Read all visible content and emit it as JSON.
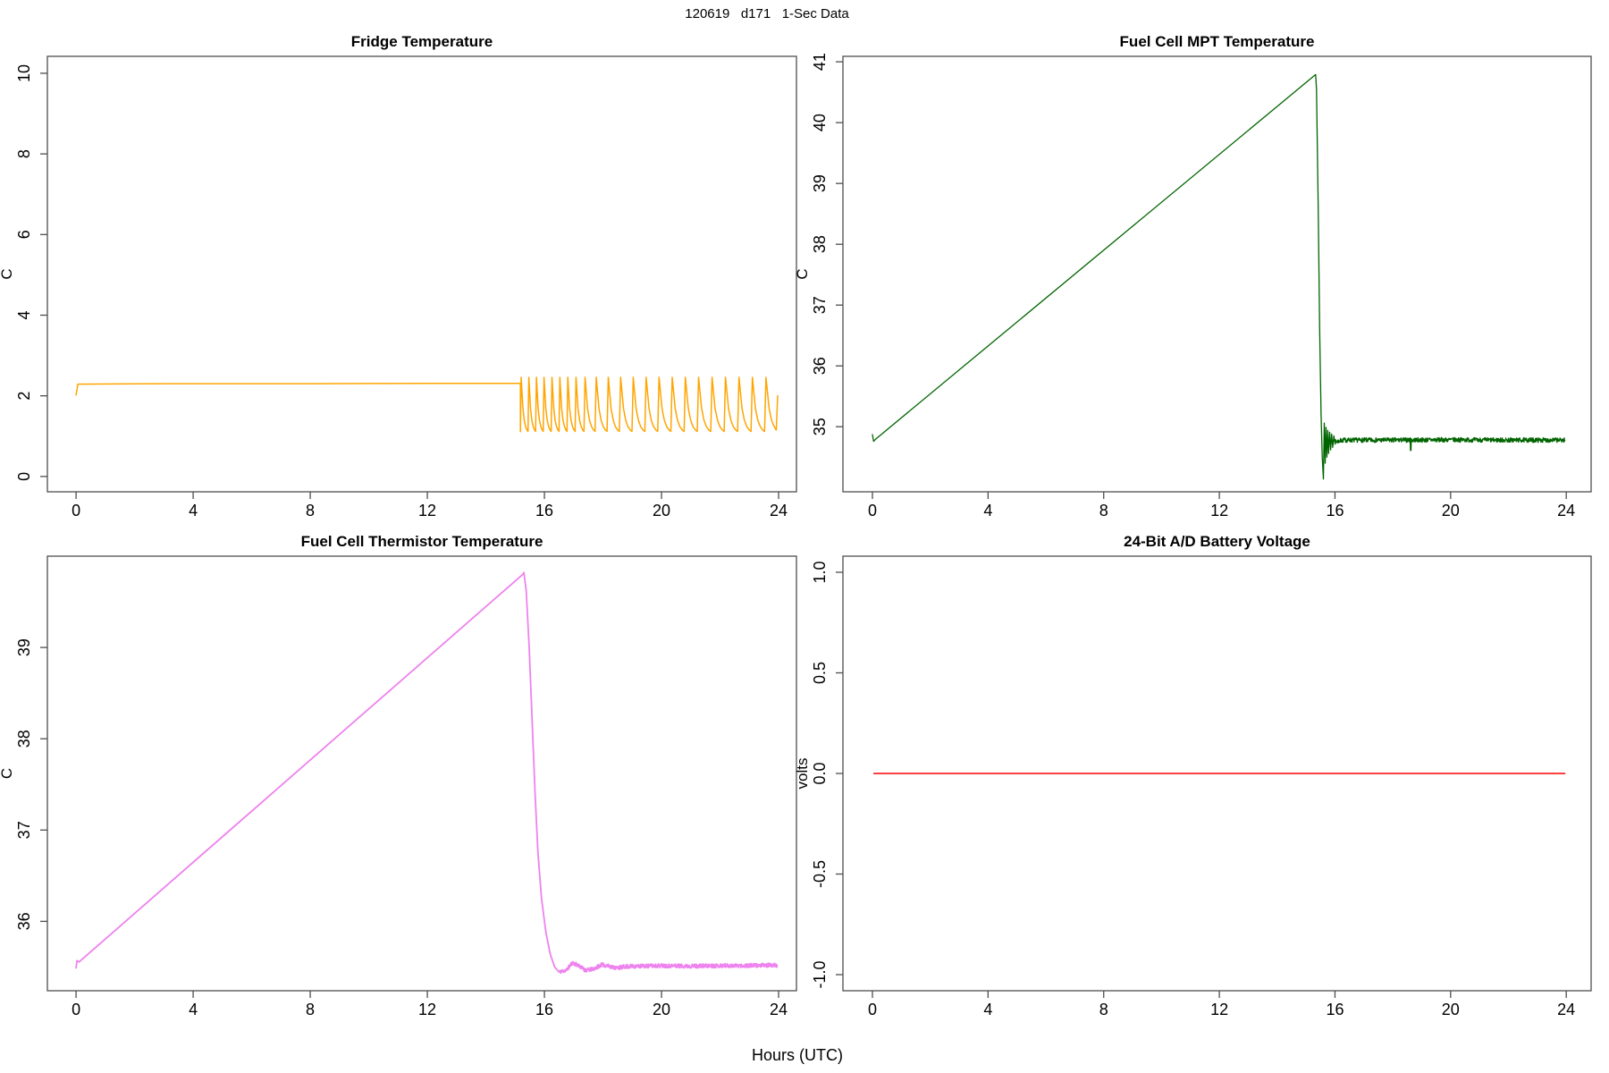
{
  "figure": {
    "main_title": "120619   d171   1-Sec Data",
    "shared_x_label": "Hours (UTC)",
    "axis_color": "#4d4d4d",
    "text_color": "#000000",
    "background": "#ffffff"
  },
  "chart_data": [
    {
      "type": "line",
      "title": "Fridge Temperature",
      "ylabel": "C",
      "line_color": "#FFA500",
      "line_width": 1.5,
      "xlim": [
        -0.98,
        24.61
      ],
      "ylim": [
        -0.38,
        10.42
      ],
      "x_ticks": [
        0,
        4,
        8,
        12,
        16,
        20,
        24
      ],
      "x_tick_labels": [
        "0",
        "4",
        "8",
        "12",
        "16",
        "20",
        "24"
      ],
      "y_ticks": [
        0,
        2,
        4,
        6,
        8,
        10
      ],
      "y_tick_labels": [
        "0",
        "2",
        "4",
        "6",
        "8",
        "10"
      ],
      "segments": [
        {
          "type": "points",
          "pts": [
            [
              0.0,
              2.02
            ],
            [
              0.06,
              2.29
            ],
            [
              3.0,
              2.3
            ],
            [
              8.0,
              2.3
            ],
            [
              12.0,
              2.31
            ],
            [
              15.18,
              2.31
            ]
          ]
        },
        {
          "type": "sawtooth",
          "from": 15.18,
          "to": 23.92,
          "trough": 1.06,
          "peak": 2.46,
          "rise_frac": 0.1,
          "decay_k": 3.2,
          "periods": [
            0.26,
            0.26,
            0.26,
            0.27,
            0.27,
            0.27,
            0.28,
            0.3,
            0.38,
            0.41,
            0.42,
            0.43,
            0.44,
            0.44,
            0.45,
            0.45,
            0.45,
            0.46,
            0.46,
            0.46,
            0.46,
            0.46,
            0.48
          ]
        },
        {
          "type": "points",
          "pts": [
            [
              23.92,
              1.15
            ],
            [
              23.97,
              2.0
            ]
          ]
        }
      ]
    },
    {
      "type": "line",
      "title": "Fuel Cell MPT Temperature",
      "ylabel": "C",
      "line_color": "#006400",
      "line_width": 1.3,
      "xlim": [
        -1.02,
        24.86
      ],
      "ylim": [
        33.93,
        41.09
      ],
      "x_ticks": [
        0,
        4,
        8,
        12,
        16,
        20,
        24
      ],
      "x_tick_labels": [
        "0",
        "4",
        "8",
        "12",
        "16",
        "20",
        "24"
      ],
      "y_ticks": [
        35,
        36,
        37,
        38,
        39,
        40,
        41
      ],
      "y_tick_labels": [
        "35",
        "36",
        "37",
        "38",
        "39",
        "40",
        "41"
      ],
      "segments": [
        {
          "type": "points",
          "pts": [
            [
              0.0,
              34.87
            ],
            [
              0.04,
              34.76
            ],
            [
              0.12,
              34.8
            ],
            [
              15.33,
              40.79
            ]
          ]
        },
        {
          "type": "points",
          "pts": [
            [
              15.33,
              40.79
            ],
            [
              15.36,
              40.55
            ],
            [
              15.42,
              38.6
            ],
            [
              15.47,
              36.6
            ],
            [
              15.52,
              35.2
            ],
            [
              15.56,
              34.5
            ],
            [
              15.6,
              34.14
            ]
          ]
        },
        {
          "type": "points",
          "pts": [
            [
              15.6,
              34.14
            ],
            [
              15.63,
              35.06
            ],
            [
              15.66,
              34.4
            ],
            [
              15.69,
              34.99
            ],
            [
              15.72,
              34.5
            ],
            [
              15.75,
              34.94
            ],
            [
              15.78,
              34.56
            ],
            [
              15.815,
              34.91
            ],
            [
              15.85,
              34.62
            ],
            [
              15.885,
              34.88
            ],
            [
              15.92,
              34.66
            ],
            [
              15.96,
              34.85
            ],
            [
              16.0,
              34.72
            ]
          ]
        },
        {
          "type": "noisy_flat",
          "from": 16.0,
          "to": 23.95,
          "step": 0.01,
          "amp": 0.038,
          "seed": 7,
          "base_pts": [
            [
              16.0,
              34.75
            ],
            [
              16.3,
              34.78
            ],
            [
              18.0,
              34.78
            ],
            [
              20.0,
              34.785
            ],
            [
              22.0,
              34.78
            ],
            [
              23.95,
              34.78
            ]
          ],
          "spikes": [
            [
              18.62,
              34.61
            ]
          ]
        }
      ]
    },
    {
      "type": "line",
      "title": "Fuel Cell Thermistor Temperature",
      "ylabel": "C",
      "line_color": "#EE82EE",
      "line_width": 1.8,
      "xlim": [
        -0.98,
        24.61
      ],
      "ylim": [
        35.24,
        40.0
      ],
      "x_ticks": [
        0,
        4,
        8,
        12,
        16,
        20,
        24
      ],
      "x_tick_labels": [
        "0",
        "4",
        "8",
        "12",
        "16",
        "20",
        "24"
      ],
      "y_ticks": [
        36,
        37,
        38,
        39
      ],
      "y_tick_labels": [
        "36",
        "37",
        "38",
        "39"
      ],
      "segments": [
        {
          "type": "points",
          "pts": [
            [
              0.0,
              35.49
            ],
            [
              0.03,
              35.57
            ],
            [
              0.1,
              35.555
            ],
            [
              15.26,
              39.8
            ]
          ]
        },
        {
          "type": "points",
          "pts": [
            [
              15.26,
              39.8
            ],
            [
              15.3,
              39.82
            ],
            [
              15.38,
              39.62
            ],
            [
              15.48,
              39.0
            ],
            [
              15.58,
              38.2
            ],
            [
              15.68,
              37.4
            ],
            [
              15.78,
              36.75
            ],
            [
              15.9,
              36.25
            ],
            [
              16.05,
              35.88
            ],
            [
              16.2,
              35.64
            ],
            [
              16.35,
              35.5
            ],
            [
              16.5,
              35.445
            ]
          ]
        },
        {
          "type": "noisy_flat",
          "from": 16.5,
          "to": 23.95,
          "step": 0.01,
          "amp": 0.022,
          "seed": 11,
          "base_pts": [
            [
              16.5,
              35.445
            ],
            [
              16.75,
              35.465
            ],
            [
              16.95,
              35.545
            ],
            [
              17.15,
              35.52
            ],
            [
              17.4,
              35.465
            ],
            [
              17.65,
              35.475
            ],
            [
              17.95,
              35.525
            ],
            [
              18.2,
              35.51
            ],
            [
              18.45,
              35.49
            ],
            [
              18.8,
              35.505
            ],
            [
              19.3,
              35.51
            ],
            [
              20.0,
              35.515
            ],
            [
              21.0,
              35.51
            ],
            [
              22.0,
              35.515
            ],
            [
              23.0,
              35.515
            ],
            [
              23.95,
              35.52
            ]
          ],
          "spikes": []
        }
      ]
    },
    {
      "type": "line",
      "title": "24-Bit A/D Battery Voltage",
      "ylabel": "volts",
      "line_color": "#FF0000",
      "line_width": 1.5,
      "xlim": [
        -1.02,
        24.86
      ],
      "ylim": [
        -1.08,
        1.08
      ],
      "x_ticks": [
        0,
        4,
        8,
        12,
        16,
        20,
        24
      ],
      "x_tick_labels": [
        "0",
        "4",
        "8",
        "12",
        "16",
        "20",
        "24"
      ],
      "y_ticks": [
        -1.0,
        -0.5,
        0.0,
        0.5,
        1.0
      ],
      "y_tick_labels": [
        "-1.0",
        "-0.5",
        "0.0",
        "0.5",
        "1.0"
      ],
      "segments": [
        {
          "type": "points",
          "pts": [
            [
              0.05,
              0.0
            ],
            [
              23.95,
              0.0
            ]
          ]
        }
      ]
    }
  ]
}
